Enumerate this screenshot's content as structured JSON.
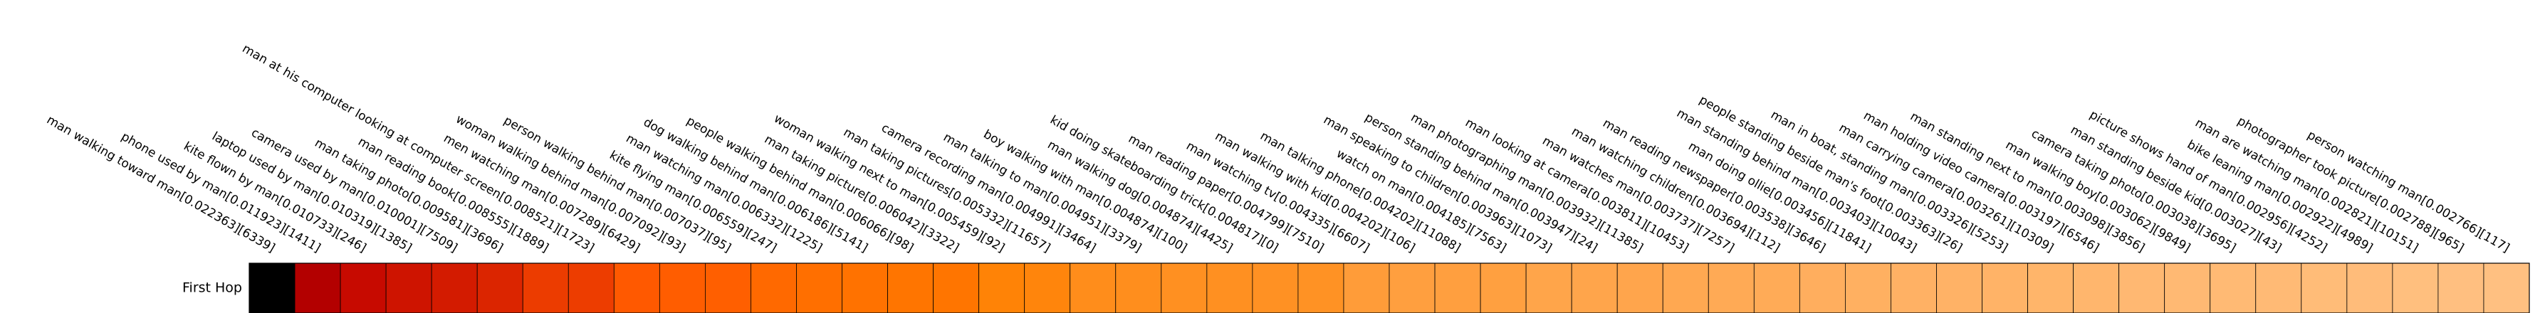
{
  "chart_data": {
    "type": "heatmap",
    "title": "",
    "row_labels": [
      "First Hop"
    ],
    "colormap": "gist_heat_r",
    "column_labels": [
      "man walking toward man[0.022363][6339]",
      "phone used by man[0.011923][1411]",
      "kite flown by man[0.010733][246]",
      "laptop used by man[0.010319][1385]",
      "camera used by man[0.010001][7509]",
      "man taking photo[0.009581][3696]",
      "man reading book[0.008555][1889]",
      "man at his computer looking at computer screen[0.008521][1723]",
      "men watching man[0.007289][6429]",
      "woman walking behind man[0.007092][93]",
      "person walking behind man[0.007037][95]",
      "kite flying man[0.006559][247]",
      "man watching man[0.006332][1225]",
      "dog walking behind man[0.006186][5141]",
      "people walking behind man[0.006066][98]",
      "man taking picture[0.006042][3322]",
      "woman walking next to man[0.005459][92]",
      "man taking pictures[0.005332][11657]",
      "camera recording man[0.004991][3464]",
      "man talking to man[0.004951][3379]",
      "boy walking with man[0.004874][100]",
      "man walking dog[0.004874][4425]",
      "kid doing skateboarding trick[0.004817][0]",
      "man reading paper[0.004799][7510]",
      "man watching tv[0.004335][6607]",
      "man walking with kid[0.004202][106]",
      "man talking phone[0.004202][11088]",
      "watch on man[0.004185][7563]",
      "man speaking to children[0.003963][1073]",
      "person standing behind man[0.003947][24]",
      "man photographing man[0.003932][11385]",
      "man looking at camera[0.003811][10453]",
      "man watches man[0.003737][7257]",
      "man watching children[0.003694][112]",
      "man reading newspaper[0.003538][3646]",
      "man doing ollie[0.003456][11841]",
      "man standing behind man[0.003403][10043]",
      "people standing beside man's foot[0.003363][26]",
      "man in boat, standing man[0.003326][5253]",
      "man carrying camera[0.003261][10309]",
      "man holding video camera[0.003197][6546]",
      "man standing next to man[0.003098][3856]",
      "man walking boy[0.003062][9849]",
      "camera taking photo[0.003038][3695]",
      "man standing beside kid[0.003027][43]",
      "picture shows hand of man[0.002956][4252]",
      "bike leaning man[0.002922][4989]",
      "man are watching man[0.002821][10151]",
      "photographer took picture[0.002788][965]",
      "person watching man[0.002766][117]"
    ],
    "values": [
      [
        0.022363,
        0.011923,
        0.010733,
        0.010319,
        0.010001,
        0.009581,
        0.008555,
        0.008521,
        0.007289,
        0.007092,
        0.007037,
        0.006559,
        0.006332,
        0.006186,
        0.006066,
        0.006042,
        0.005459,
        0.005332,
        0.004991,
        0.004951,
        0.004874,
        0.004874,
        0.004817,
        0.004799,
        0.004335,
        0.004202,
        0.004202,
        0.004185,
        0.003963,
        0.003947,
        0.003932,
        0.003811,
        0.003737,
        0.003694,
        0.003538,
        0.003456,
        0.003403,
        0.003363,
        0.003326,
        0.003261,
        0.003197,
        0.003098,
        0.003062,
        0.003038,
        0.003027,
        0.002956,
        0.002922,
        0.002821,
        0.002788,
        0.002766
      ]
    ],
    "xlabel": "",
    "ylabel": ""
  }
}
